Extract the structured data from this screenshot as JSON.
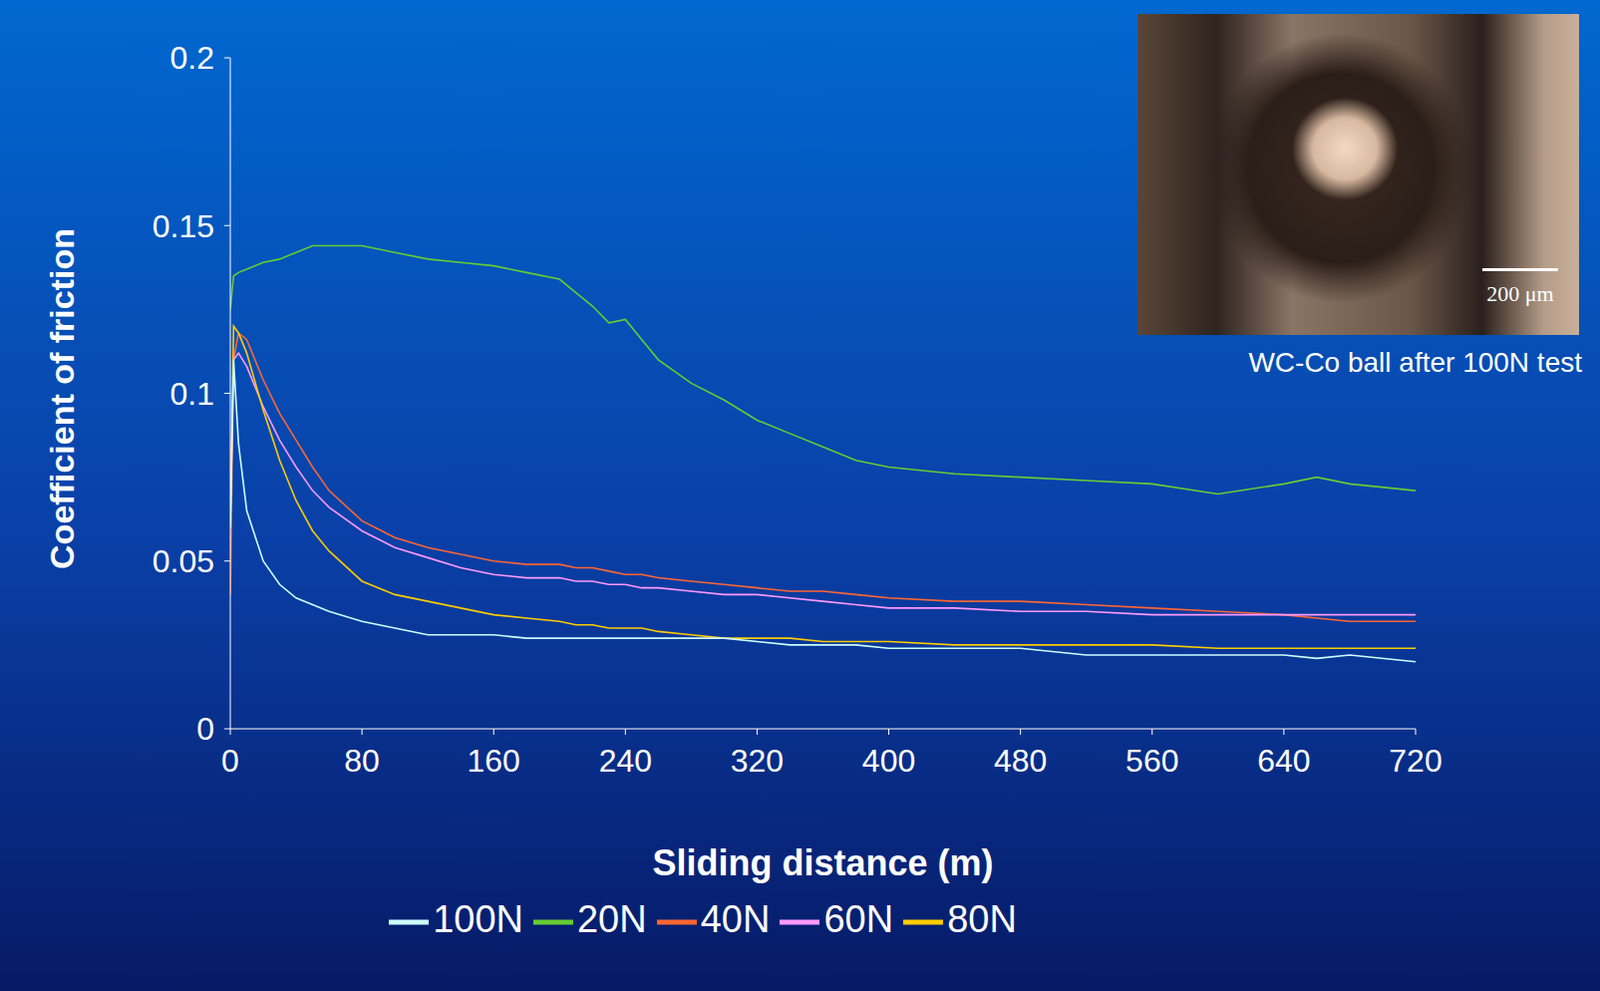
{
  "chart_data": {
    "type": "line",
    "x_label": "Sliding distance (m)",
    "y_label": "Coefficient of friction",
    "x": [
      0,
      2,
      5,
      10,
      20,
      30,
      40,
      50,
      60,
      80,
      100,
      120,
      140,
      160,
      180,
      200,
      210,
      220,
      230,
      240,
      250,
      260,
      280,
      300,
      320,
      340,
      360,
      380,
      400,
      440,
      480,
      520,
      560,
      600,
      640,
      660,
      680,
      720
    ],
    "series": [
      {
        "name": "20N",
        "color": "#66cc33",
        "values": [
          0.125,
          0.135,
          0.136,
          0.137,
          0.139,
          0.14,
          0.142,
          0.144,
          0.144,
          0.144,
          0.142,
          0.14,
          0.139,
          0.138,
          0.136,
          0.134,
          0.13,
          0.126,
          0.121,
          0.122,
          0.116,
          0.11,
          0.103,
          0.098,
          0.092,
          0.088,
          0.084,
          0.08,
          0.078,
          0.076,
          0.075,
          0.074,
          0.073,
          0.07,
          0.073,
          0.075,
          0.073,
          0.071
        ]
      },
      {
        "name": "40N",
        "color": "#ff6633",
        "values": [
          0.04,
          0.11,
          0.118,
          0.116,
          0.104,
          0.094,
          0.086,
          0.078,
          0.071,
          0.062,
          0.057,
          0.054,
          0.052,
          0.05,
          0.049,
          0.049,
          0.048,
          0.048,
          0.047,
          0.046,
          0.046,
          0.045,
          0.044,
          0.043,
          0.042,
          0.041,
          0.041,
          0.04,
          0.039,
          0.038,
          0.038,
          0.037,
          0.036,
          0.035,
          0.034,
          0.033,
          0.032,
          0.032
        ]
      },
      {
        "name": "60N",
        "color": "#ff99ff",
        "values": [
          0.06,
          0.11,
          0.112,
          0.108,
          0.096,
          0.086,
          0.078,
          0.071,
          0.066,
          0.059,
          0.054,
          0.051,
          0.048,
          0.046,
          0.045,
          0.045,
          0.044,
          0.044,
          0.043,
          0.043,
          0.042,
          0.042,
          0.041,
          0.04,
          0.04,
          0.039,
          0.038,
          0.037,
          0.036,
          0.036,
          0.035,
          0.035,
          0.034,
          0.034,
          0.034,
          0.034,
          0.034,
          0.034
        ]
      },
      {
        "name": "80N",
        "color": "#ffcc00",
        "values": [
          0.06,
          0.12,
          0.118,
          0.112,
          0.095,
          0.08,
          0.068,
          0.059,
          0.053,
          0.044,
          0.04,
          0.038,
          0.036,
          0.034,
          0.033,
          0.032,
          0.031,
          0.031,
          0.03,
          0.03,
          0.03,
          0.029,
          0.028,
          0.027,
          0.027,
          0.027,
          0.026,
          0.026,
          0.026,
          0.025,
          0.025,
          0.025,
          0.025,
          0.024,
          0.024,
          0.024,
          0.024,
          0.024
        ]
      },
      {
        "name": "100N",
        "color": "#ccffff",
        "values": [
          0.06,
          0.11,
          0.085,
          0.065,
          0.05,
          0.043,
          0.039,
          0.037,
          0.035,
          0.032,
          0.03,
          0.028,
          0.028,
          0.028,
          0.027,
          0.027,
          0.027,
          0.027,
          0.027,
          0.027,
          0.027,
          0.027,
          0.027,
          0.027,
          0.026,
          0.025,
          0.025,
          0.025,
          0.024,
          0.024,
          0.024,
          0.022,
          0.022,
          0.022,
          0.022,
          0.021,
          0.022,
          0.02
        ]
      }
    ],
    "xlim": [
      0,
      720
    ],
    "xticks": [
      0,
      80,
      160,
      240,
      320,
      400,
      480,
      560,
      640,
      720
    ],
    "ylim": [
      0,
      0.2
    ],
    "yticks": [
      0,
      0.05,
      0.1,
      0.15,
      0.2
    ],
    "grid": false,
    "legend": "bottom",
    "annotations": [
      "WC-Co ball after 100N test",
      "200 μm"
    ]
  }
}
